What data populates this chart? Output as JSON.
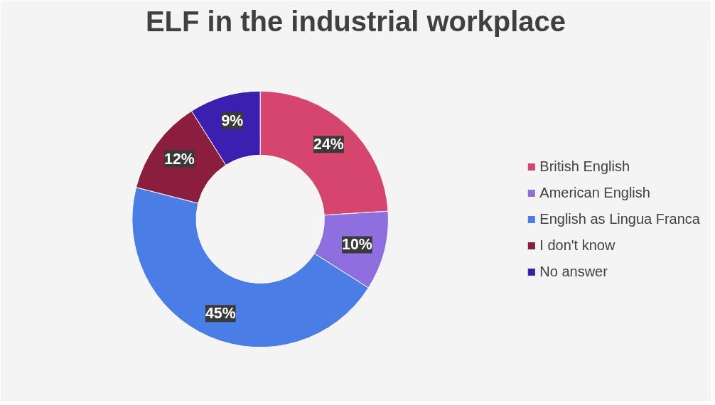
{
  "chart_data": {
    "type": "donut",
    "title": "ELF in the industrial workplace",
    "categories": [
      "British English",
      "American English",
      "English as Lingua Franca",
      "I don't know",
      "No answer"
    ],
    "values": [
      24,
      10,
      45,
      12,
      9
    ],
    "colors": [
      "#d6456e",
      "#8f6fe0",
      "#4a7de6",
      "#8b1e3f",
      "#3b1fb0"
    ],
    "value_labels": [
      "24%",
      "10%",
      "45%",
      "12%",
      "9%"
    ],
    "legend": "right"
  }
}
